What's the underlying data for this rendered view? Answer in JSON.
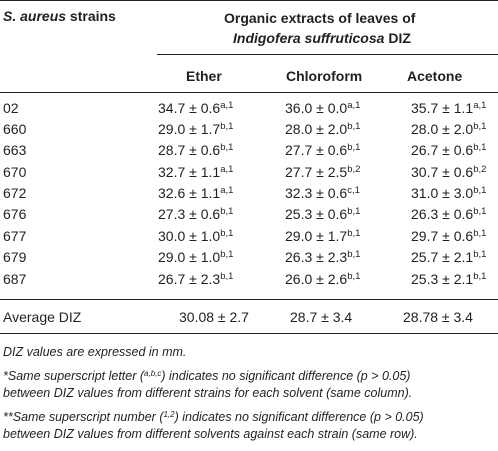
{
  "header": {
    "strain_label_italic": "S. aureus",
    "strain_label_rest": " strains",
    "group_line1": "Organic extracts of leaves of",
    "group_line2_italic": "Indigofera suffruticosa",
    "group_line2_rest": " DIZ",
    "columns": [
      "Ether",
      "Chloroform",
      "Acetone"
    ]
  },
  "rows": [
    {
      "strain": "02",
      "cells": [
        {
          "v": "34.7 ± 0.6",
          "s": "a,1"
        },
        {
          "v": "36.0 ± 0.0",
          "s": "a,1"
        },
        {
          "v": "35.7 ± 1.1",
          "s": "a,1"
        }
      ]
    },
    {
      "strain": "660",
      "cells": [
        {
          "v": "29.0 ± 1.7",
          "s": "b,1"
        },
        {
          "v": "28.0 ± 2.0",
          "s": "b,1"
        },
        {
          "v": "28.0 ± 2.0",
          "s": "b,1"
        }
      ]
    },
    {
      "strain": "663",
      "cells": [
        {
          "v": "28.7 ± 0.6",
          "s": "b,1"
        },
        {
          "v": "27.7 ± 0.6",
          "s": "b,1"
        },
        {
          "v": "26.7 ± 0.6",
          "s": "b,1"
        }
      ]
    },
    {
      "strain": "670",
      "cells": [
        {
          "v": "32.7 ± 1.1",
          "s": "a,1"
        },
        {
          "v": "27.7 ± 2.5",
          "s": "b,2"
        },
        {
          "v": "30.7 ± 0.6",
          "s": "b,2"
        }
      ]
    },
    {
      "strain": "672",
      "cells": [
        {
          "v": "32.6 ± 1.1",
          "s": "a,1"
        },
        {
          "v": "32.3 ± 0.6",
          "s": "c,1"
        },
        {
          "v": "31.0 ± 3.0",
          "s": "b,1"
        }
      ]
    },
    {
      "strain": "676",
      "cells": [
        {
          "v": "27.3 ± 0.6",
          "s": "b,1"
        },
        {
          "v": "25.3 ± 0.6",
          "s": "b,1"
        },
        {
          "v": "26.3 ± 0.6",
          "s": "b,1"
        }
      ]
    },
    {
      "strain": "677",
      "cells": [
        {
          "v": "30.0 ± 1.0",
          "s": "b,1"
        },
        {
          "v": "29.0 ± 1.7",
          "s": "b,1"
        },
        {
          "v": "29.7 ± 0.6",
          "s": "b,1"
        }
      ]
    },
    {
      "strain": "679",
      "cells": [
        {
          "v": "29.0 ± 1.0",
          "s": "b,1"
        },
        {
          "v": "26.3 ± 2.3",
          "s": "b,1"
        },
        {
          "v": "25.7 ± 2.1",
          "s": "b,1"
        }
      ]
    },
    {
      "strain": "687",
      "cells": [
        {
          "v": "26.7 ± 2.3",
          "s": "b,1"
        },
        {
          "v": "26.0 ± 2.6",
          "s": "b,1"
        },
        {
          "v": "25.3 ± 2.1",
          "s": "b,1"
        }
      ]
    }
  ],
  "average": {
    "label": "Average DIZ",
    "cells": [
      "30.08 ± 2.7",
      "28.7 ± 3.4",
      "28.78 ± 3.4"
    ]
  },
  "notes": {
    "n1": "DIZ values are expressed in mm.",
    "n2_pre": "*Same superscript letter (",
    "n2_sup": "a,b,c",
    "n2_post": ") indicates no significant difference (p > 0.05)",
    "n2_line2": "between DIZ values from different strains for each solvent (same column).",
    "n3_pre": "**Same superscript number (",
    "n3_sup": "1,2",
    "n3_post": ") indicates no significant difference (p > 0.05)",
    "n3_line2": "between DIZ values from different solvents against each strain (same row)."
  }
}
